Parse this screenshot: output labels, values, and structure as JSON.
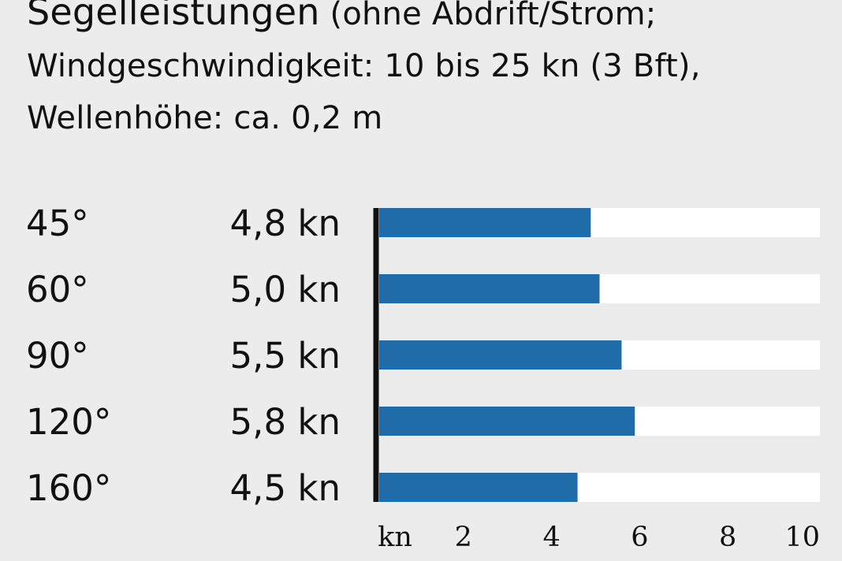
{
  "header": {
    "title": "Segelleistungen",
    "paren": "(ohne Abdrift/Strom;",
    "line2": "Windgeschwindigkeit: 10 bis 25 kn (3 Bft),",
    "line3": "Wellenhöhe: ca. 0,2 m"
  },
  "colors": {
    "background": "#ececec",
    "bar_fill": "#1f6ca8",
    "track_fill": "#ffffff",
    "axis_line": "#111111"
  },
  "chart_data": {
    "type": "bar",
    "orientation": "horizontal",
    "categories": [
      "45°",
      "60°",
      "90°",
      "120°",
      "160°"
    ],
    "values": [
      4.8,
      5.0,
      5.5,
      5.8,
      4.5
    ],
    "value_labels": [
      "4,8 kn",
      "5,0 kn",
      "5,5 kn",
      "5,8 kn",
      "4,5 kn"
    ],
    "xlim": [
      0,
      10
    ],
    "x_axis_unit_label": "kn",
    "x_ticks": [
      2,
      4,
      6,
      8,
      10
    ],
    "x_tick_labels": [
      "2",
      "4",
      "6",
      "8",
      "10"
    ],
    "grid": false,
    "legend": "none"
  }
}
